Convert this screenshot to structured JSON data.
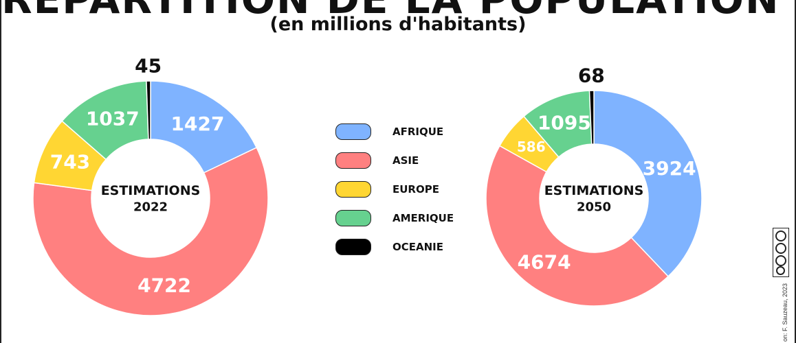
{
  "title": "RÉPARTITION DE LA POPULATION MONDIALE",
  "subtitle": "(en millions d'habitants)",
  "credit": "on: F. Sauzeau, 2023",
  "license_badge": "CC BY NC SA",
  "colors": {
    "AFRIQUE": "#7fb3ff",
    "ASIE": "#ff8080",
    "EUROPE": "#ffd633",
    "AMERIQUE": "#66d18f",
    "OCEANIE": "#000000"
  },
  "legend": [
    {
      "label": "AFRIQUE",
      "color": "#7fb3ff"
    },
    {
      "label": "ASIE",
      "color": "#ff8080"
    },
    {
      "label": "EUROPE",
      "color": "#ffd633"
    },
    {
      "label": "AMERIQUE",
      "color": "#66d18f"
    },
    {
      "label": "OCEANIE",
      "color": "#000000"
    }
  ],
  "chart_data": [
    {
      "type": "pie",
      "center_label": [
        "ESTIMATIONS",
        "2022"
      ],
      "categories": [
        "AFRIQUE",
        "ASIE",
        "EUROPE",
        "AMERIQUE",
        "OCEANIE"
      ],
      "values": [
        1427,
        4722,
        743,
        1037,
        45
      ]
    },
    {
      "type": "pie",
      "center_label": [
        "ESTIMATIONS",
        "2050"
      ],
      "categories": [
        "AFRIQUE",
        "ASIE",
        "EUROPE",
        "AMERIQUE",
        "OCEANIE"
      ],
      "values": [
        3924,
        4674,
        586,
        1095,
        68
      ]
    }
  ]
}
